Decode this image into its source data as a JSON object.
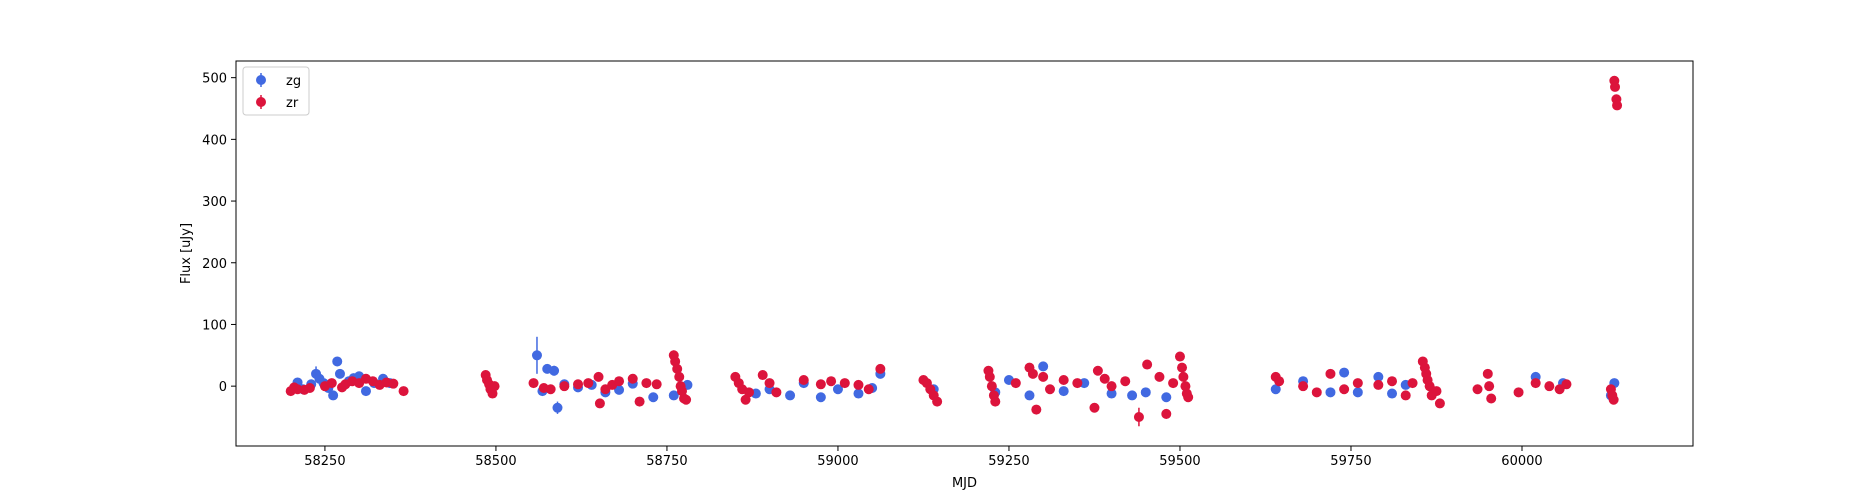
{
  "chart_data": {
    "type": "scatter",
    "xlabel": "MJD",
    "ylabel": "Flux [uJy]",
    "xlim": [
      58120,
      60250
    ],
    "ylim": [
      -97,
      527
    ],
    "x_ticks": [
      58250,
      58500,
      58750,
      59000,
      59250,
      59500,
      59750,
      60000
    ],
    "y_ticks": [
      0,
      100,
      200,
      300,
      400,
      500
    ],
    "grid": false,
    "legend_position": "top-left",
    "colors": {
      "zg": "#4169e1",
      "zr": "#dc143c"
    },
    "series": [
      {
        "name": "zg",
        "color": "#4169e1",
        "marker": "circle",
        "points": [
          [
            58210,
            6,
            3
          ],
          [
            58218,
            -5,
            3
          ],
          [
            58230,
            3,
            4
          ],
          [
            58237,
            20,
            12
          ],
          [
            58242,
            12,
            5
          ],
          [
            58248,
            5,
            4
          ],
          [
            58255,
            -3,
            4
          ],
          [
            58262,
            -15,
            4
          ],
          [
            58268,
            40,
            6
          ],
          [
            58272,
            20,
            4
          ],
          [
            58285,
            8,
            4
          ],
          [
            58292,
            13,
            5
          ],
          [
            58300,
            16,
            5
          ],
          [
            58310,
            -8,
            4
          ],
          [
            58322,
            5,
            4
          ],
          [
            58335,
            12,
            4
          ],
          [
            58345,
            5,
            3
          ],
          [
            58560,
            50,
            30
          ],
          [
            58568,
            -8,
            5
          ],
          [
            58575,
            28,
            6
          ],
          [
            58585,
            25,
            8
          ],
          [
            58590,
            -35,
            10
          ],
          [
            58600,
            3,
            4
          ],
          [
            58620,
            -2,
            3
          ],
          [
            58640,
            2,
            3
          ],
          [
            58660,
            -10,
            4
          ],
          [
            58680,
            -6,
            4
          ],
          [
            58700,
            4,
            4
          ],
          [
            58730,
            -18,
            5
          ],
          [
            58760,
            -15,
            5
          ],
          [
            58780,
            2,
            4
          ],
          [
            58880,
            -12,
            4
          ],
          [
            58900,
            -5,
            4
          ],
          [
            58930,
            -15,
            5
          ],
          [
            58950,
            5,
            4
          ],
          [
            58975,
            -18,
            5
          ],
          [
            59000,
            -5,
            4
          ],
          [
            59030,
            -12,
            4
          ],
          [
            59050,
            -3,
            4
          ],
          [
            59062,
            20,
            5
          ],
          [
            59140,
            -5,
            4
          ],
          [
            59230,
            -10,
            4
          ],
          [
            59250,
            10,
            4
          ],
          [
            59280,
            -15,
            4
          ],
          [
            59300,
            32,
            6
          ],
          [
            59330,
            -8,
            4
          ],
          [
            59360,
            5,
            4
          ],
          [
            59400,
            -12,
            4
          ],
          [
            59430,
            -15,
            5
          ],
          [
            59450,
            -10,
            5
          ],
          [
            59480,
            -18,
            5
          ],
          [
            59640,
            -5,
            4
          ],
          [
            59680,
            8,
            4
          ],
          [
            59720,
            -10,
            4
          ],
          [
            59740,
            22,
            7
          ],
          [
            59760,
            -10,
            4
          ],
          [
            59790,
            15,
            5
          ],
          [
            59810,
            -12,
            4
          ],
          [
            59830,
            2,
            4
          ],
          [
            60020,
            15,
            8
          ],
          [
            60060,
            5,
            4
          ],
          [
            60130,
            -15,
            5
          ],
          [
            60135,
            5,
            5
          ]
        ]
      },
      {
        "name": "zr",
        "color": "#dc143c",
        "marker": "circle",
        "points": [
          [
            58200,
            -8,
            3
          ],
          [
            58205,
            -2,
            3
          ],
          [
            58210,
            -5,
            3
          ],
          [
            58220,
            -6,
            3
          ],
          [
            58228,
            -3,
            3
          ],
          [
            58250,
            0,
            3
          ],
          [
            58260,
            5,
            3
          ],
          [
            58275,
            -2,
            3
          ],
          [
            58280,
            3,
            3
          ],
          [
            58290,
            8,
            3
          ],
          [
            58300,
            5,
            3
          ],
          [
            58310,
            12,
            4
          ],
          [
            58320,
            8,
            3
          ],
          [
            58330,
            2,
            3
          ],
          [
            58340,
            6,
            3
          ],
          [
            58350,
            4,
            3
          ],
          [
            58365,
            -8,
            3
          ],
          [
            58485,
            18,
            4
          ],
          [
            58487,
            10,
            4
          ],
          [
            58490,
            3,
            4
          ],
          [
            58492,
            -5,
            4
          ],
          [
            58495,
            -12,
            4
          ],
          [
            58498,
            0,
            4
          ],
          [
            58555,
            5,
            4
          ],
          [
            58570,
            -3,
            4
          ],
          [
            58580,
            -5,
            4
          ],
          [
            58600,
            0,
            4
          ],
          [
            58620,
            3,
            4
          ],
          [
            58635,
            5,
            4
          ],
          [
            58650,
            15,
            5
          ],
          [
            58652,
            -28,
            6
          ],
          [
            58660,
            -5,
            4
          ],
          [
            58670,
            2,
            4
          ],
          [
            58680,
            8,
            4
          ],
          [
            58700,
            12,
            4
          ],
          [
            58710,
            -25,
            5
          ],
          [
            58720,
            5,
            4
          ],
          [
            58735,
            3,
            4
          ],
          [
            58760,
            50,
            8
          ],
          [
            58762,
            40,
            6
          ],
          [
            58765,
            28,
            5
          ],
          [
            58768,
            15,
            5
          ],
          [
            58770,
            0,
            4
          ],
          [
            58772,
            -8,
            4
          ],
          [
            58775,
            -20,
            5
          ],
          [
            58778,
            -22,
            5
          ],
          [
            58850,
            15,
            4
          ],
          [
            58855,
            5,
            4
          ],
          [
            58860,
            -5,
            4
          ],
          [
            58865,
            -22,
            6
          ],
          [
            58870,
            -10,
            4
          ],
          [
            58890,
            18,
            4
          ],
          [
            58900,
            5,
            4
          ],
          [
            58910,
            -10,
            4
          ],
          [
            58950,
            10,
            4
          ],
          [
            58975,
            3,
            4
          ],
          [
            58990,
            8,
            4
          ],
          [
            59010,
            5,
            4
          ],
          [
            59030,
            2,
            4
          ],
          [
            59045,
            -5,
            4
          ],
          [
            59062,
            28,
            5
          ],
          [
            59125,
            10,
            4
          ],
          [
            59130,
            5,
            4
          ],
          [
            59135,
            -5,
            4
          ],
          [
            59140,
            -15,
            5
          ],
          [
            59145,
            -25,
            5
          ],
          [
            59220,
            25,
            5
          ],
          [
            59222,
            15,
            4
          ],
          [
            59225,
            0,
            4
          ],
          [
            59228,
            -15,
            4
          ],
          [
            59230,
            -25,
            5
          ],
          [
            59260,
            5,
            4
          ],
          [
            59280,
            30,
            5
          ],
          [
            59285,
            20,
            5
          ],
          [
            59290,
            -38,
            6
          ],
          [
            59300,
            15,
            4
          ],
          [
            59310,
            -5,
            4
          ],
          [
            59330,
            10,
            4
          ],
          [
            59350,
            5,
            4
          ],
          [
            59375,
            -35,
            6
          ],
          [
            59380,
            25,
            5
          ],
          [
            59390,
            12,
            4
          ],
          [
            59400,
            0,
            4
          ],
          [
            59420,
            8,
            4
          ],
          [
            59440,
            -50,
            15
          ],
          [
            59452,
            35,
            5
          ],
          [
            59470,
            15,
            4
          ],
          [
            59480,
            -45,
            8
          ],
          [
            59490,
            5,
            4
          ],
          [
            59500,
            48,
            7
          ],
          [
            59503,
            30,
            5
          ],
          [
            59505,
            15,
            4
          ],
          [
            59508,
            0,
            4
          ],
          [
            59510,
            -12,
            4
          ],
          [
            59512,
            -18,
            4
          ],
          [
            59640,
            15,
            4
          ],
          [
            59645,
            8,
            4
          ],
          [
            59680,
            0,
            4
          ],
          [
            59700,
            -10,
            4
          ],
          [
            59720,
            20,
            5
          ],
          [
            59740,
            -5,
            4
          ],
          [
            59760,
            5,
            4
          ],
          [
            59790,
            2,
            4
          ],
          [
            59810,
            8,
            4
          ],
          [
            59830,
            -15,
            4
          ],
          [
            59840,
            5,
            4
          ],
          [
            59855,
            40,
            6
          ],
          [
            59858,
            30,
            5
          ],
          [
            59860,
            20,
            5
          ],
          [
            59862,
            10,
            4
          ],
          [
            59865,
            0,
            4
          ],
          [
            59868,
            -15,
            4
          ],
          [
            59875,
            -8,
            4
          ],
          [
            59880,
            -28,
            6
          ],
          [
            59935,
            -5,
            4
          ],
          [
            59950,
            20,
            5
          ],
          [
            59952,
            0,
            4
          ],
          [
            59955,
            -20,
            5
          ],
          [
            59995,
            -10,
            4
          ],
          [
            60020,
            5,
            4
          ],
          [
            60040,
            0,
            4
          ],
          [
            60055,
            -5,
            4
          ],
          [
            60065,
            3,
            4
          ],
          [
            60130,
            -5,
            4
          ],
          [
            60132,
            -15,
            4
          ],
          [
            60134,
            -22,
            5
          ],
          [
            60135,
            495,
            4
          ],
          [
            60136,
            485,
            4
          ],
          [
            60138,
            465,
            4
          ],
          [
            60139,
            455,
            4
          ]
        ]
      }
    ]
  }
}
